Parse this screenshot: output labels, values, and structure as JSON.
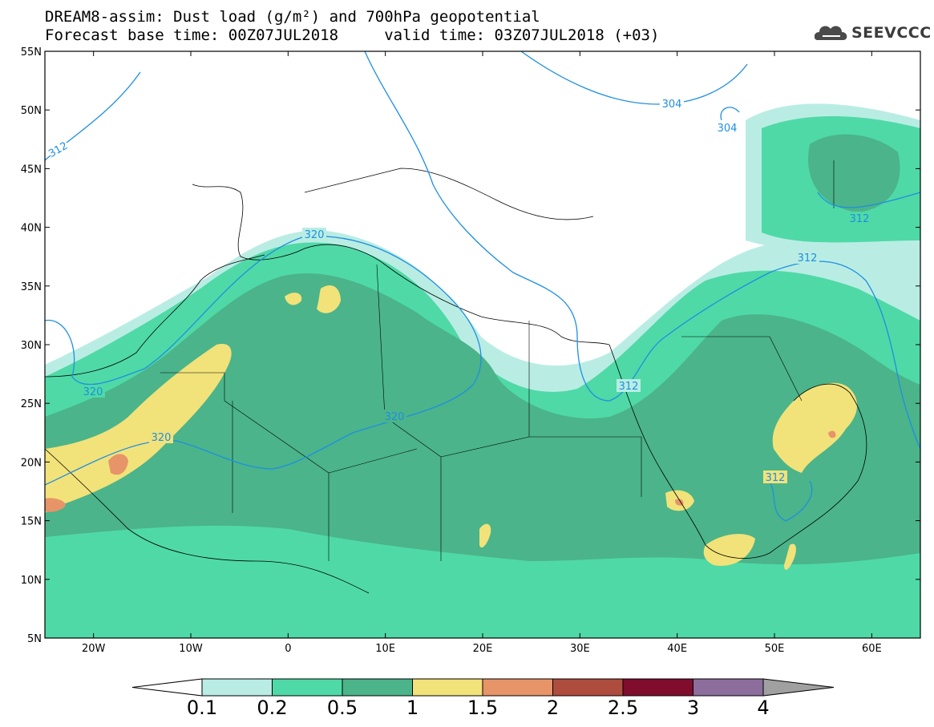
{
  "header": {
    "line1": "DREAM8-assim: Dust load (g/m²) and 700hPa geopotential",
    "line2": "Forecast base time: 00Z07JUL2018     valid time: 03Z07JUL2018 (+03)",
    "logo_text": "SEEVCCC"
  },
  "map": {
    "lat_labels": [
      "55N",
      "50N",
      "45N",
      "40N",
      "35N",
      "30N",
      "25N",
      "20N",
      "15N",
      "10N",
      "5N"
    ],
    "lon_labels": [
      "20W",
      "10W",
      "0",
      "10E",
      "20E",
      "30E",
      "40E",
      "50E",
      "60E"
    ],
    "contour_labels": [
      "304",
      "304",
      "312",
      "312",
      "312",
      "312",
      "312",
      "320",
      "320",
      "320",
      "320"
    ]
  },
  "colorbar": {
    "labels": [
      "0.1",
      "0.2",
      "0.5",
      "1",
      "1.5",
      "2",
      "2.5",
      "3",
      "4"
    ],
    "colors": [
      "#b9ede4",
      "#4fd9a6",
      "#4bb48a",
      "#f2e27a",
      "#e79469",
      "#ae4c3e",
      "#800d2e",
      "#8c6d9c"
    ],
    "end_left_color": "#ffffff",
    "end_right_color": "#a0a0a0"
  }
}
